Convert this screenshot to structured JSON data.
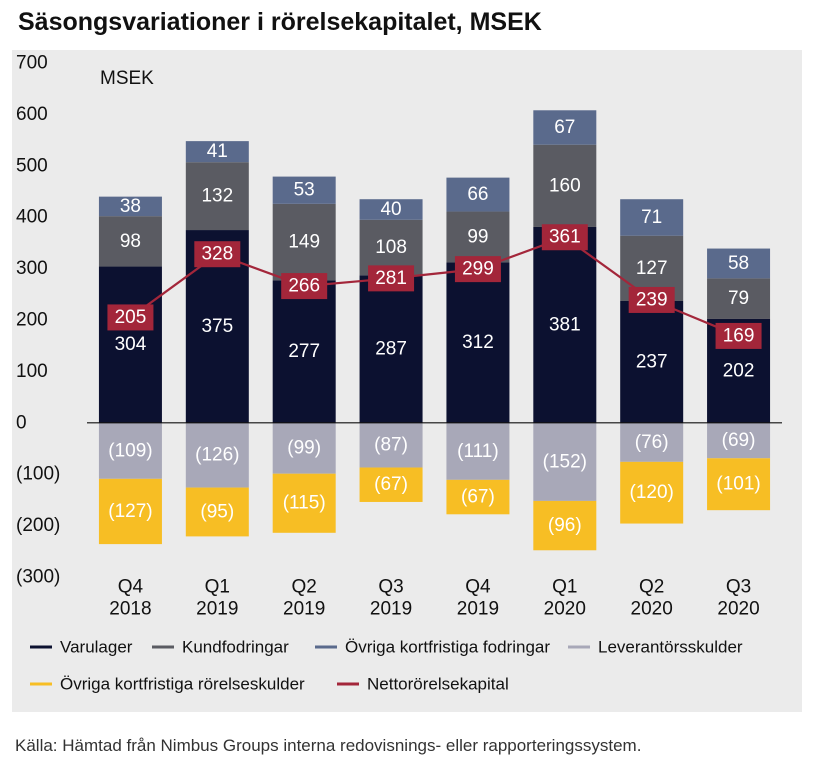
{
  "title": "Säsongsvariationer i rörelsekapitalet, MSEK",
  "source": "Källa: Hämtad från Nimbus Groups interna redovisnings- eller rapporteringssystem.",
  "chart_data": {
    "type": "bar",
    "stacked": true,
    "unit_label": "MSEK",
    "ylim": [
      -300,
      700
    ],
    "y_ticks": [
      700,
      600,
      500,
      400,
      300,
      200,
      100,
      0,
      -100,
      -200,
      -300
    ],
    "y_tick_labels": [
      "700",
      "600",
      "500",
      "400",
      "300",
      "200",
      "100",
      "0",
      "(100)",
      "(200)",
      "(300)"
    ],
    "categories": [
      {
        "quarter": "Q4",
        "year": "2018"
      },
      {
        "quarter": "Q1",
        "year": "2019"
      },
      {
        "quarter": "Q2",
        "year": "2019"
      },
      {
        "quarter": "Q3",
        "year": "2019"
      },
      {
        "quarter": "Q4",
        "year": "2019"
      },
      {
        "quarter": "Q1",
        "year": "2020"
      },
      {
        "quarter": "Q2",
        "year": "2020"
      },
      {
        "quarter": "Q3",
        "year": "2020"
      }
    ],
    "series": [
      {
        "name": "Varulager",
        "kind": "bar",
        "color": "#0c1130",
        "label_color": "#ffffff",
        "values": [
          304,
          375,
          277,
          287,
          312,
          381,
          237,
          202
        ],
        "labels": [
          "304",
          "375",
          "277",
          "287",
          "312",
          "381",
          "237",
          "202"
        ]
      },
      {
        "name": "Kundfodringar",
        "kind": "bar",
        "color": "#5a5b62",
        "label_color": "#ffffff",
        "values": [
          98,
          132,
          149,
          108,
          99,
          160,
          127,
          79
        ],
        "labels": [
          "98",
          "132",
          "149",
          "108",
          "99",
          "160",
          "127",
          "79"
        ]
      },
      {
        "name": "Övriga kortfristiga fodringar",
        "kind": "bar",
        "color": "#5a6a8c",
        "label_color": "#ffffff",
        "values": [
          38,
          41,
          53,
          40,
          66,
          67,
          71,
          58
        ],
        "labels": [
          "38",
          "41",
          "53",
          "40",
          "66",
          "67",
          "71",
          "58"
        ]
      },
      {
        "name": "Leverantörsskulder",
        "kind": "bar",
        "color": "#a8a8b8",
        "label_color": "#ffffff",
        "values": [
          -109,
          -126,
          -99,
          -87,
          -111,
          -152,
          -76,
          -69
        ],
        "labels": [
          "(109)",
          "(126)",
          "(99)",
          "(87)",
          "(111)",
          "(152)",
          "(76)",
          "(69)"
        ]
      },
      {
        "name": "Övriga kortfristiga rörelseskulder",
        "kind": "bar",
        "color": "#f7be24",
        "label_color": "#ffffff",
        "values": [
          -127,
          -95,
          -115,
          -67,
          -67,
          -96,
          -120,
          -101
        ],
        "labels": [
          "(127)",
          "(95)",
          "(115)",
          "(67)",
          "(67)",
          "(96)",
          "(120)",
          "(101)"
        ]
      },
      {
        "name": "Nettorörelsekapital",
        "kind": "line",
        "color": "#a3263a",
        "label_color": "#ffffff",
        "values": [
          205,
          328,
          266,
          281,
          299,
          361,
          239,
          169
        ],
        "labels": [
          "205",
          "328",
          "266",
          "281",
          "299",
          "361",
          "239",
          "169"
        ]
      }
    ],
    "legend": {
      "position": "bottom",
      "rows": [
        [
          "Varulager",
          "Kundfodringar",
          "Övriga kortfristiga fodringar",
          "Leverantörsskulder"
        ],
        [
          "Övriga kortfristiga rörelseskulder",
          "Nettorörelsekapital"
        ]
      ]
    },
    "grid": false
  }
}
